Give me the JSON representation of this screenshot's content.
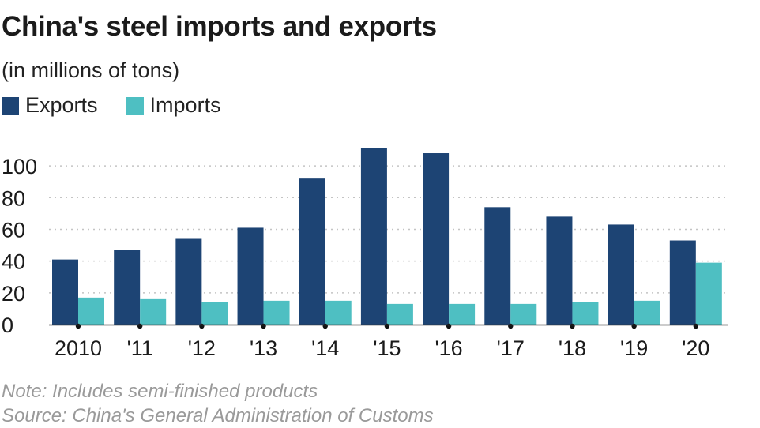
{
  "chart_data": {
    "type": "bar",
    "title": "China's steel imports and exports",
    "subtitle": "(in millions of tons)",
    "categories": [
      "2010",
      "'11",
      "'12",
      "'13",
      "'14",
      "'15",
      "'16",
      "'17",
      "'18",
      "'19",
      "'20"
    ],
    "series": [
      {
        "name": "Exports",
        "color": "#1d4474",
        "values": [
          41,
          47,
          54,
          61,
          92,
          111,
          108,
          74,
          68,
          63,
          53
        ]
      },
      {
        "name": "Imports",
        "color": "#4ebfc2",
        "values": [
          17,
          16,
          14,
          15,
          15,
          13,
          13,
          13,
          14,
          15,
          39
        ]
      }
    ],
    "ylim": [
      0,
      110
    ],
    "yticks": [
      0,
      20,
      40,
      60,
      80,
      100
    ],
    "ylabel": "",
    "xlabel": "",
    "grid": true,
    "legend_position": "top-left"
  },
  "notes": {
    "note": "Note: Includes semi-finished products",
    "source": "Source: China's General Administration of Customs"
  }
}
